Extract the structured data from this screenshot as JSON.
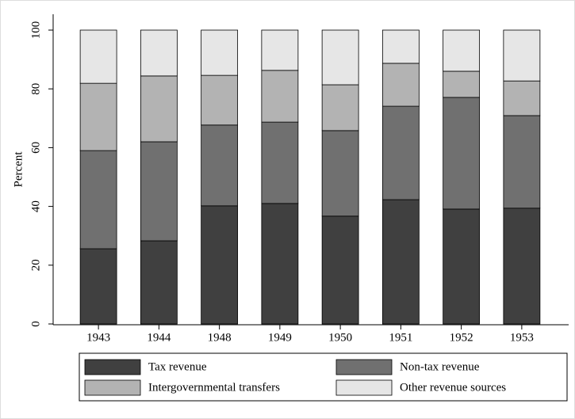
{
  "chart_data": {
    "type": "stacked-bar",
    "categories": [
      "1943",
      "1944",
      "1948",
      "1949",
      "1950",
      "1951",
      "1952",
      "1953"
    ],
    "series": [
      {
        "name": "Tax revenue",
        "color": "#404040",
        "values": [
          25.6,
          28.3,
          40.2,
          41.0,
          36.7,
          42.3,
          39.1,
          39.4
        ]
      },
      {
        "name": "Non-tax revenue",
        "color": "#707070",
        "values": [
          33.4,
          33.7,
          27.5,
          27.7,
          29.1,
          31.8,
          38.0,
          31.5
        ]
      },
      {
        "name": "Intergovernmental transfers",
        "color": "#b3b3b3",
        "values": [
          22.9,
          22.4,
          16.9,
          17.6,
          15.6,
          14.6,
          8.9,
          11.8
        ]
      },
      {
        "name": "Other revenue sources",
        "color": "#e6e6e6",
        "values": [
          18.1,
          15.6,
          15.4,
          13.7,
          18.6,
          11.3,
          14.0,
          17.3
        ]
      }
    ],
    "ylabel": "Percent",
    "ylim": [
      0,
      100
    ],
    "yticks": [
      0,
      20,
      40,
      60,
      80,
      100
    ],
    "legend": "bottom"
  }
}
